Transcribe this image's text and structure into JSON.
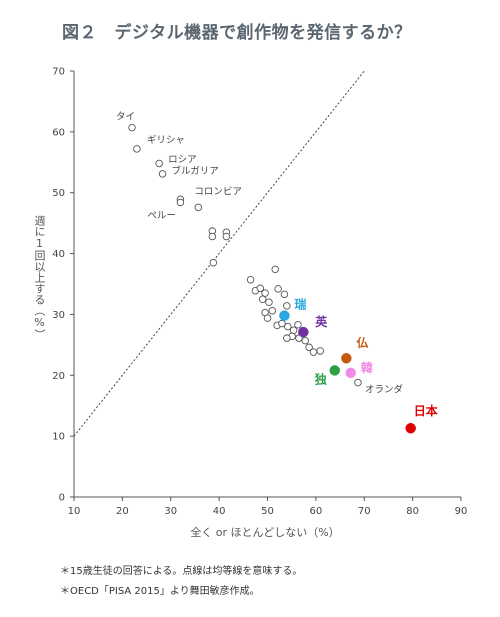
{
  "title": "図２　デジタル機器で創作物を発信するか？",
  "notes": [
    "＊15歳生徒の回答による。点線は均等線を意味する。",
    "＊OECD「PISA 2015」より舞田敏彦作成。"
  ],
  "chart_data": {
    "type": "scatter",
    "xlabel": "全く or ほとんどしない（%）",
    "ylabel": "週に1回以上する（%）",
    "xlim": [
      10,
      90
    ],
    "ylim": [
      0,
      70
    ],
    "xticks": [
      10,
      20,
      30,
      40,
      50,
      60,
      70,
      80,
      90
    ],
    "yticks": [
      0,
      10,
      20,
      30,
      40,
      50,
      60,
      70
    ],
    "grid": false,
    "reference_line": {
      "style": "dotted",
      "from": [
        10,
        10
      ],
      "to": [
        70,
        70
      ]
    },
    "points": [
      {
        "x": 22.0,
        "y": 60.7,
        "label": "タイ"
      },
      {
        "x": 23.0,
        "y": 57.2,
        "label": "ギリシャ"
      },
      {
        "x": 27.6,
        "y": 54.8,
        "label": "ロシア"
      },
      {
        "x": 28.3,
        "y": 53.1,
        "label": "ブルガリア"
      },
      {
        "x": 32.0,
        "y": 48.9,
        "label": ""
      },
      {
        "x": 32.0,
        "y": 48.4,
        "label": "コロンビア"
      },
      {
        "x": 35.7,
        "y": 47.6,
        "label": "ペルー"
      },
      {
        "x": 38.6,
        "y": 43.7,
        "label": ""
      },
      {
        "x": 38.6,
        "y": 42.8,
        "label": ""
      },
      {
        "x": 41.5,
        "y": 43.5,
        "label": ""
      },
      {
        "x": 41.5,
        "y": 42.8,
        "label": ""
      },
      {
        "x": 38.8,
        "y": 38.5,
        "label": ""
      },
      {
        "x": 46.5,
        "y": 35.7,
        "label": ""
      },
      {
        "x": 47.5,
        "y": 33.9,
        "label": ""
      },
      {
        "x": 48.5,
        "y": 34.3,
        "label": ""
      },
      {
        "x": 49.5,
        "y": 33.5,
        "label": ""
      },
      {
        "x": 49.0,
        "y": 32.5,
        "label": ""
      },
      {
        "x": 50.3,
        "y": 32.0,
        "label": ""
      },
      {
        "x": 51.6,
        "y": 37.4,
        "label": ""
      },
      {
        "x": 52.2,
        "y": 34.2,
        "label": ""
      },
      {
        "x": 53.5,
        "y": 33.3,
        "label": ""
      },
      {
        "x": 54.0,
        "y": 31.4,
        "label": ""
      },
      {
        "x": 49.5,
        "y": 30.3,
        "label": ""
      },
      {
        "x": 50.0,
        "y": 29.4,
        "label": ""
      },
      {
        "x": 51.0,
        "y": 30.6,
        "label": ""
      },
      {
        "x": 52.0,
        "y": 28.2,
        "label": ""
      },
      {
        "x": 53.0,
        "y": 28.5,
        "label": ""
      },
      {
        "x": 54.2,
        "y": 28.0,
        "label": ""
      },
      {
        "x": 55.4,
        "y": 27.4,
        "label": ""
      },
      {
        "x": 56.3,
        "y": 28.3,
        "label": ""
      },
      {
        "x": 55.1,
        "y": 26.4,
        "label": ""
      },
      {
        "x": 54.0,
        "y": 26.1,
        "label": ""
      },
      {
        "x": 56.5,
        "y": 26.1,
        "label": ""
      },
      {
        "x": 57.8,
        "y": 25.7,
        "label": ""
      },
      {
        "x": 58.6,
        "y": 24.6,
        "label": ""
      },
      {
        "x": 59.5,
        "y": 23.8,
        "label": ""
      },
      {
        "x": 60.9,
        "y": 24.0,
        "label": ""
      },
      {
        "x": 68.7,
        "y": 18.8,
        "label": "オランダ"
      }
    ],
    "highlighted": [
      {
        "x": 53.5,
        "y": 29.8,
        "label": "瑞",
        "color": "#29a8e0"
      },
      {
        "x": 57.4,
        "y": 27.1,
        "label": "英",
        "color": "#7030a0"
      },
      {
        "x": 66.3,
        "y": 22.8,
        "label": "仏",
        "color": "#c55a11"
      },
      {
        "x": 63.9,
        "y": 20.8,
        "label": "独",
        "color": "#2e9e44"
      },
      {
        "x": 67.2,
        "y": 20.4,
        "label": "韓",
        "color": "#f08ce6"
      },
      {
        "x": 79.6,
        "y": 11.3,
        "label": "日本",
        "color": "#e00000"
      }
    ]
  }
}
